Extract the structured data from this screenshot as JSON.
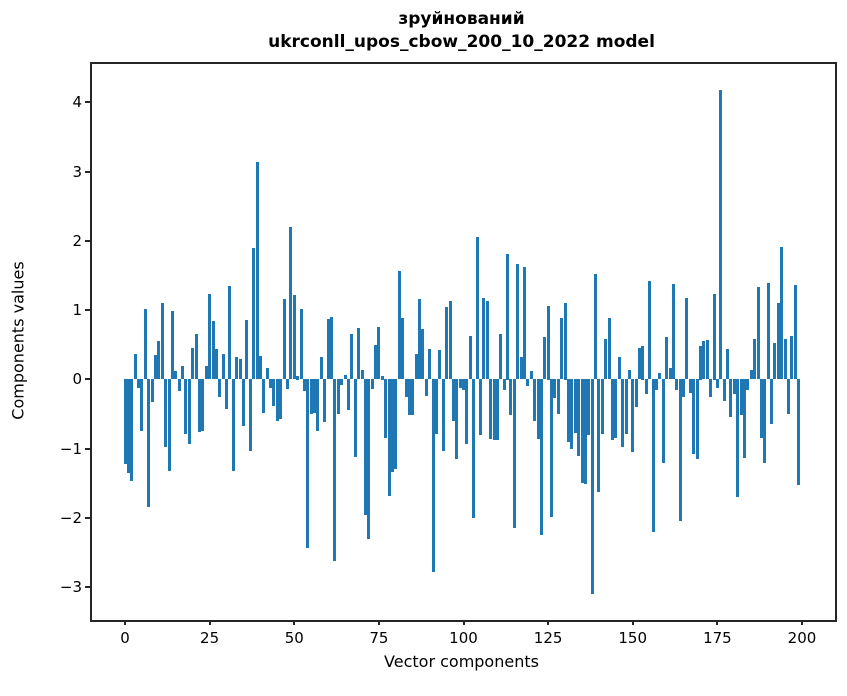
{
  "chart_data": {
    "type": "bar",
    "title": "зруйнований",
    "subtitle": "ukrconll_upos_cbow_200_10_2022 model",
    "xlabel": "Vector components",
    "ylabel": "Components values",
    "x_ticks": [
      0,
      25,
      50,
      75,
      100,
      125,
      150,
      175,
      200
    ],
    "y_ticks": [
      4,
      3,
      2,
      1,
      0,
      -1,
      -2,
      -3
    ],
    "xlim": [
      -9.75,
      209.75
    ],
    "ylim": [
      -3.47,
      4.55
    ],
    "grid": false,
    "legend": "none",
    "bar_color": "#1f77b4",
    "frame_color": "#262626",
    "n_components": 200,
    "values": [
      -1.22,
      -1.35,
      -1.47,
      0.37,
      -0.12,
      -0.75,
      1.01,
      -1.84,
      -0.33,
      0.35,
      0.56,
      1.1,
      -0.98,
      -1.32,
      0.99,
      0.12,
      -0.17,
      0.2,
      -0.79,
      -0.93,
      0.46,
      0.65,
      -0.76,
      -0.74,
      0.2,
      1.23,
      0.85,
      0.44,
      -0.25,
      0.37,
      -0.43,
      1.35,
      -1.32,
      0.32,
      0.3,
      -0.67,
      0.86,
      -1.03,
      1.9,
      3.13,
      0.34,
      -0.48,
      0.17,
      -0.12,
      -0.38,
      -0.6,
      -0.57,
      1.16,
      -0.14,
      2.2,
      1.22,
      0.05,
      1.02,
      -0.17,
      -2.43,
      -0.5,
      -0.49,
      -0.74,
      0.32,
      -0.62,
      0.87,
      0.9,
      -2.62,
      -0.5,
      -0.08,
      0.06,
      -0.44,
      0.65,
      -1.12,
      0.74,
      0.13,
      -1.95,
      -2.3,
      -0.14,
      0.5,
      0.75,
      0.05,
      -0.85,
      -1.68,
      -1.34,
      -1.29,
      1.57,
      0.88,
      -0.26,
      -0.52,
      -0.52,
      0.37,
      1.16,
      0.73,
      -0.24,
      0.44,
      -2.78,
      -0.79,
      0.42,
      -1.03,
      1.04,
      1.13,
      -0.6,
      -1.15,
      -0.12,
      -0.16,
      -0.93,
      0.63,
      -2.0,
      2.06,
      -0.8,
      1.18,
      1.13,
      -0.86,
      -0.88,
      -0.88,
      0.65,
      -0.15,
      1.81,
      -0.52,
      -2.14,
      1.66,
      0.32,
      1.62,
      -0.1,
      0.12,
      -0.6,
      -0.86,
      -2.25,
      0.61,
      1.06,
      -1.98,
      -0.27,
      -0.5,
      0.89,
      1.11,
      -0.91,
      -1.01,
      -0.78,
      -1.11,
      -1.49,
      -1.51,
      -0.8,
      -3.1,
      1.52,
      -1.63,
      -0.79,
      0.58,
      0.89,
      -0.88,
      -0.85,
      0.32,
      -0.98,
      -0.79,
      0.13,
      -1.05,
      -0.4,
      0.46,
      0.49,
      -0.21,
      1.42,
      -2.2,
      -0.16,
      0.1,
      -1.2,
      0.61,
      0.17,
      1.38,
      -0.16,
      -2.05,
      -0.26,
      1.17,
      -0.19,
      -1.08,
      -1.15,
      0.49,
      0.56,
      0.57,
      -0.26,
      1.24,
      -0.12,
      4.18,
      -0.31,
      0.44,
      -0.55,
      -0.21,
      -1.7,
      -0.52,
      -1.13,
      -0.16,
      0.13,
      0.58,
      1.34,
      -0.85,
      -1.2,
      1.39,
      -0.64,
      0.52,
      1.1,
      1.91,
      0.58,
      -0.5,
      0.63,
      1.36,
      -1.53
    ]
  }
}
